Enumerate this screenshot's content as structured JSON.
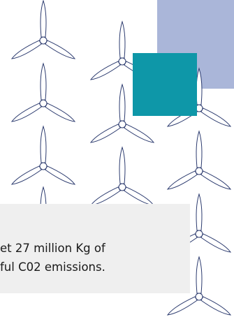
{
  "text": {
    "lines": [
      "et 27 million Kg of",
      "ful C02 emissions."
    ]
  }
}
